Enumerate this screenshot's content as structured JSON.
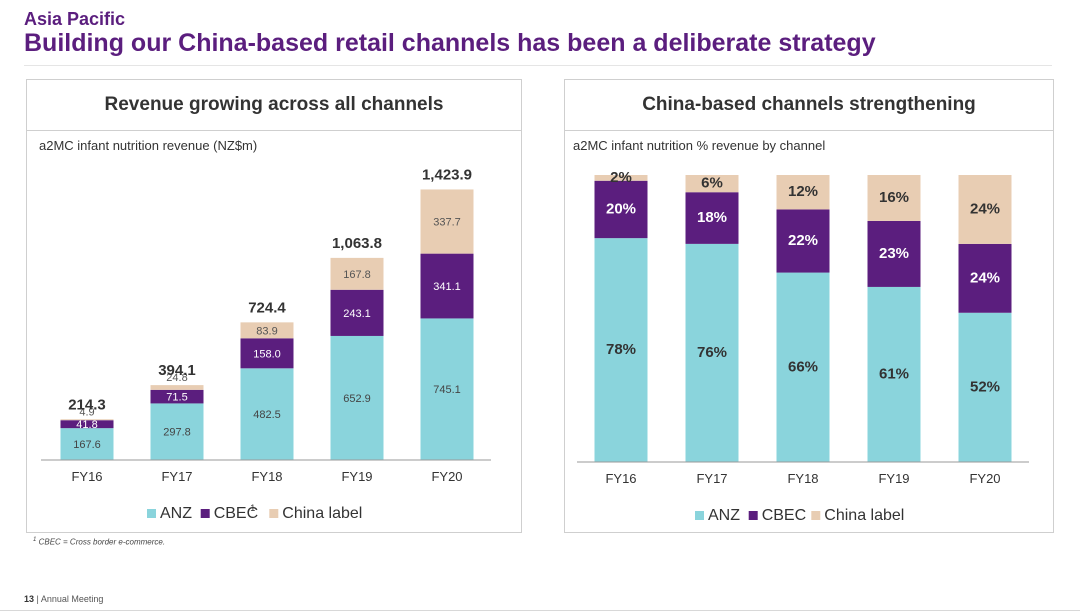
{
  "header": {
    "section": "Asia Pacific",
    "title": "Building our China-based retail channels has been a deliberate strategy"
  },
  "colors": {
    "anz": "#8ad4dc",
    "cbec": "#5b1e7e",
    "china_label": "#e8cdb3",
    "title": "#5b1e7e"
  },
  "chart_data": [
    {
      "type": "bar",
      "stacked": true,
      "title": "Revenue growing across all channels",
      "subtitle": "a2MC infant nutrition revenue (NZ$m)",
      "categories": [
        "FY16",
        "FY17",
        "FY18",
        "FY19",
        "FY20"
      ],
      "series": [
        {
          "name": "ANZ",
          "values": [
            167.6,
            297.8,
            482.5,
            652.9,
            745.1
          ],
          "labels": [
            "167.6",
            "297.8",
            "482.5",
            "652.9",
            "745.1"
          ]
        },
        {
          "name": "CBEC",
          "legend_label": "CBEC",
          "legend_sup": "1",
          "values": [
            41.8,
            71.5,
            158.0,
            243.1,
            341.1
          ],
          "labels": [
            "41.8",
            "71.5",
            "158.0",
            "243.1",
            "341.1"
          ]
        },
        {
          "name": "China label",
          "values": [
            4.9,
            24.8,
            83.9,
            167.8,
            337.7
          ],
          "labels": [
            "4.9",
            "24.8",
            "83.9",
            "167.8",
            "337.7"
          ]
        }
      ],
      "totals": [
        214.3,
        394.1,
        724.4,
        1063.8,
        1423.9
      ],
      "total_labels": [
        "214.3",
        "394.1",
        "724.4",
        "1,063.8",
        "1,423.9"
      ],
      "ylim": [
        0,
        1500
      ]
    },
    {
      "type": "bar",
      "stacked": true,
      "percent": true,
      "title": "China-based channels strengthening",
      "subtitle": "a2MC infant nutrition % revenue by channel",
      "categories": [
        "FY16",
        "FY17",
        "FY18",
        "FY19",
        "FY20"
      ],
      "series": [
        {
          "name": "ANZ",
          "values": [
            78,
            76,
            66,
            61,
            52
          ],
          "labels": [
            "78%",
            "76%",
            "66%",
            "61%",
            "52%"
          ]
        },
        {
          "name": "CBEC",
          "values": [
            20,
            18,
            22,
            23,
            24
          ],
          "labels": [
            "20%",
            "18%",
            "22%",
            "23%",
            "24%"
          ]
        },
        {
          "name": "China label",
          "values": [
            2,
            6,
            12,
            16,
            24
          ],
          "labels": [
            "2%",
            "6%",
            "12%",
            "16%",
            "24%"
          ]
        }
      ],
      "ylim": [
        0,
        100
      ]
    }
  ],
  "footnote": {
    "sup": "1",
    "text": "CBEC = Cross border e-commerce."
  },
  "footer": {
    "page": "13",
    "separator": "|",
    "label": "Annual Meeting"
  }
}
